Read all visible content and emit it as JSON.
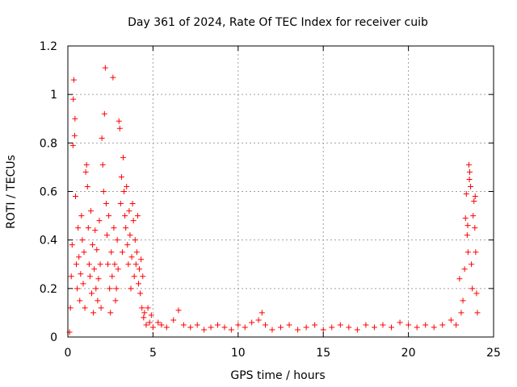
{
  "chart_data": {
    "type": "scatter",
    "title": "Day 361 of 2024, Rate Of TEC Index for receiver cuib",
    "xlabel": "GPS time / hours",
    "ylabel": "ROTI / TECUs",
    "xlim": [
      0,
      25
    ],
    "ylim": [
      0,
      1.2
    ],
    "x_ticks": [
      0,
      5,
      10,
      15,
      20,
      25
    ],
    "x_tick_labels": [
      "0",
      "5",
      "10",
      "15",
      "20",
      "25"
    ],
    "y_ticks": [
      0,
      0.2,
      0.4,
      0.6,
      0.8,
      1,
      1.2
    ],
    "y_tick_labels": [
      "0",
      "0.2",
      "0.4",
      "0.6",
      "0.8",
      "1",
      "1.2"
    ],
    "grid": true,
    "legend": "none",
    "marker": "plus",
    "color": "#ff0000",
    "series": [
      {
        "points": [
          [
            0.1,
            0.02
          ],
          [
            0.15,
            0.12
          ],
          [
            0.2,
            0.25
          ],
          [
            0.25,
            0.38
          ],
          [
            0.3,
            0.79
          ],
          [
            0.32,
            0.98
          ],
          [
            0.35,
            1.06
          ],
          [
            0.4,
            0.83
          ],
          [
            0.42,
            0.9
          ],
          [
            0.45,
            0.58
          ],
          [
            0.5,
            0.3
          ],
          [
            0.55,
            0.2
          ],
          [
            0.6,
            0.45
          ],
          [
            0.65,
            0.33
          ],
          [
            0.7,
            0.15
          ],
          [
            0.75,
            0.26
          ],
          [
            0.8,
            0.5
          ],
          [
            0.85,
            0.4
          ],
          [
            0.9,
            0.22
          ],
          [
            0.95,
            0.35
          ],
          [
            1.0,
            0.12
          ],
          [
            1.05,
            0.68
          ],
          [
            1.1,
            0.71
          ],
          [
            1.15,
            0.62
          ],
          [
            1.2,
            0.45
          ],
          [
            1.25,
            0.3
          ],
          [
            1.3,
            0.25
          ],
          [
            1.35,
            0.52
          ],
          [
            1.4,
            0.18
          ],
          [
            1.45,
            0.38
          ],
          [
            1.5,
            0.1
          ],
          [
            1.55,
            0.28
          ],
          [
            1.6,
            0.44
          ],
          [
            1.65,
            0.2
          ],
          [
            1.7,
            0.36
          ],
          [
            1.75,
            0.15
          ],
          [
            1.8,
            0.24
          ],
          [
            1.85,
            0.48
          ],
          [
            1.9,
            0.3
          ],
          [
            1.95,
            0.12
          ],
          [
            2.0,
            0.82
          ],
          [
            2.05,
            0.71
          ],
          [
            2.1,
            0.6
          ],
          [
            2.15,
            0.92
          ],
          [
            2.2,
            1.11
          ],
          [
            2.25,
            0.55
          ],
          [
            2.3,
            0.42
          ],
          [
            2.35,
            0.3
          ],
          [
            2.4,
            0.5
          ],
          [
            2.45,
            0.2
          ],
          [
            2.5,
            0.1
          ],
          [
            2.55,
            0.35
          ],
          [
            2.6,
            0.25
          ],
          [
            2.65,
            1.07
          ],
          [
            2.7,
            0.45
          ],
          [
            2.75,
            0.3
          ],
          [
            2.8,
            0.15
          ],
          [
            2.85,
            0.2
          ],
          [
            2.9,
            0.4
          ],
          [
            2.95,
            0.28
          ],
          [
            3.0,
            0.89
          ],
          [
            3.05,
            0.86
          ],
          [
            3.1,
            0.55
          ],
          [
            3.15,
            0.66
          ],
          [
            3.2,
            0.35
          ],
          [
            3.25,
            0.74
          ],
          [
            3.3,
            0.6
          ],
          [
            3.35,
            0.5
          ],
          [
            3.4,
            0.45
          ],
          [
            3.45,
            0.62
          ],
          [
            3.5,
            0.38
          ],
          [
            3.55,
            0.3
          ],
          [
            3.6,
            0.52
          ],
          [
            3.65,
            0.42
          ],
          [
            3.7,
            0.2
          ],
          [
            3.75,
            0.33
          ],
          [
            3.8,
            0.55
          ],
          [
            3.85,
            0.48
          ],
          [
            3.9,
            0.25
          ],
          [
            3.95,
            0.4
          ],
          [
            4.0,
            0.3
          ],
          [
            4.05,
            0.35
          ],
          [
            4.1,
            0.5
          ],
          [
            4.15,
            0.22
          ],
          [
            4.2,
            0.28
          ],
          [
            4.25,
            0.18
          ],
          [
            4.3,
            0.32
          ],
          [
            4.35,
            0.12
          ],
          [
            4.4,
            0.25
          ],
          [
            4.45,
            0.08
          ],
          [
            4.5,
            0.1
          ],
          [
            4.6,
            0.05
          ],
          [
            4.7,
            0.12
          ],
          [
            4.8,
            0.06
          ],
          [
            4.9,
            0.09
          ],
          [
            5.0,
            0.04
          ],
          [
            5.3,
            0.06
          ],
          [
            5.5,
            0.05
          ],
          [
            5.8,
            0.04
          ],
          [
            6.2,
            0.07
          ],
          [
            6.5,
            0.11
          ],
          [
            6.8,
            0.05
          ],
          [
            7.2,
            0.04
          ],
          [
            7.6,
            0.05
          ],
          [
            8.0,
            0.03
          ],
          [
            8.4,
            0.04
          ],
          [
            8.8,
            0.05
          ],
          [
            9.2,
            0.04
          ],
          [
            9.6,
            0.03
          ],
          [
            10.0,
            0.05
          ],
          [
            10.4,
            0.04
          ],
          [
            10.8,
            0.06
          ],
          [
            11.2,
            0.07
          ],
          [
            11.4,
            0.1
          ],
          [
            11.6,
            0.05
          ],
          [
            12.0,
            0.03
          ],
          [
            12.5,
            0.04
          ],
          [
            13.0,
            0.05
          ],
          [
            13.5,
            0.03
          ],
          [
            14.0,
            0.04
          ],
          [
            14.5,
            0.05
          ],
          [
            15.0,
            0.03
          ],
          [
            15.5,
            0.04
          ],
          [
            16.0,
            0.05
          ],
          [
            16.5,
            0.04
          ],
          [
            17.0,
            0.03
          ],
          [
            17.5,
            0.05
          ],
          [
            18.0,
            0.04
          ],
          [
            18.5,
            0.05
          ],
          [
            19.0,
            0.04
          ],
          [
            19.5,
            0.06
          ],
          [
            20.0,
            0.05
          ],
          [
            20.5,
            0.04
          ],
          [
            21.0,
            0.05
          ],
          [
            21.5,
            0.04
          ],
          [
            22.0,
            0.05
          ],
          [
            22.5,
            0.07
          ],
          [
            22.8,
            0.05
          ],
          [
            23.0,
            0.24
          ],
          [
            23.1,
            0.1
          ],
          [
            23.2,
            0.15
          ],
          [
            23.3,
            0.28
          ],
          [
            23.35,
            0.49
          ],
          [
            23.4,
            0.59
          ],
          [
            23.45,
            0.42
          ],
          [
            23.5,
            0.35
          ],
          [
            23.55,
            0.71
          ],
          [
            23.6,
            0.68
          ],
          [
            23.65,
            0.62
          ],
          [
            23.7,
            0.3
          ],
          [
            23.75,
            0.2
          ],
          [
            23.8,
            0.5
          ],
          [
            23.85,
            0.56
          ],
          [
            23.9,
            0.45
          ],
          [
            23.95,
            0.35
          ],
          [
            24.0,
            0.18
          ],
          [
            24.05,
            0.1
          ],
          [
            23.92,
            0.58
          ],
          [
            23.58,
            0.65
          ],
          [
            23.48,
            0.46
          ]
        ]
      }
    ]
  }
}
